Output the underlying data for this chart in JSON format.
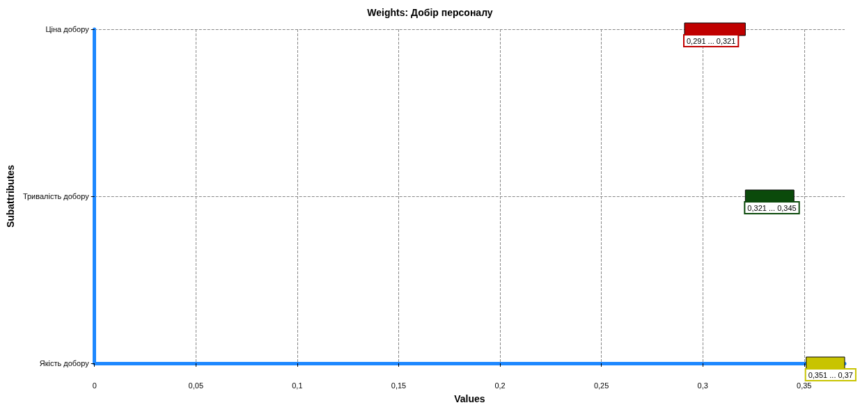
{
  "chart_data": {
    "type": "bar",
    "orientation": "horizontal",
    "title": "Weights: Добір персоналу",
    "xlabel": "Values",
    "ylabel": "Subattributes",
    "categories": [
      "Ціна добору",
      "Тривалість добору",
      "Якість добору"
    ],
    "base": [
      0.291,
      0.321,
      0.351
    ],
    "values": [
      0.03,
      0.024,
      0.019
    ],
    "colors": [
      "#c00000",
      "#0b4a0b",
      "#c8c400"
    ],
    "annotations": [
      {
        "text": "0,291 ... 0,321",
        "x": 0.291,
        "y": "Ціна добору"
      },
      {
        "text": "0,321 ... 0,345",
        "x": 0.321,
        "y": "Тривалість добору"
      },
      {
        "text": "0,351 ... 0,37",
        "x": 0.351,
        "y": "Якість добору"
      }
    ],
    "xlim": [
      0,
      0.37
    ],
    "xticks": [
      0,
      {
        "value": 0.05,
        "label": "0,05"
      },
      {
        "value": 0.1,
        "label": "0,1"
      },
      {
        "value": 0.15,
        "label": "0,15"
      },
      {
        "value": 0.2,
        "label": "0,2"
      },
      {
        "value": 0.25,
        "label": "0,25"
      },
      {
        "value": 0.3,
        "label": "0,3"
      },
      {
        "value": 0.35,
        "label": "0,35"
      }
    ],
    "grid": true
  }
}
